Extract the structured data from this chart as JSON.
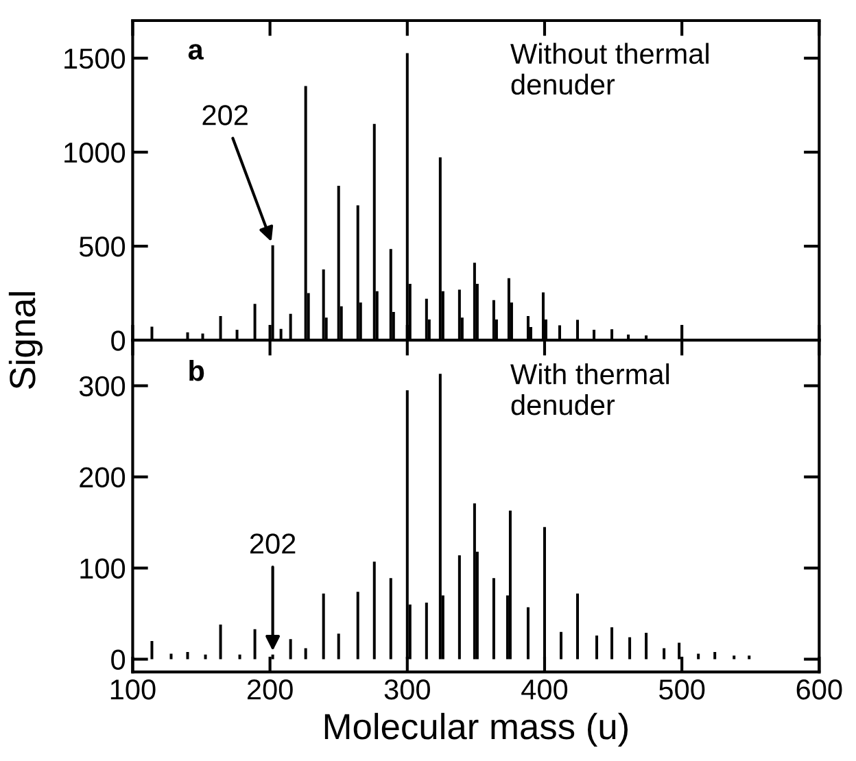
{
  "chart_data": [
    {
      "type": "bar",
      "ylabel": "Signal",
      "x": [
        114,
        127,
        140,
        151,
        164,
        176,
        189,
        202,
        208,
        215,
        226,
        228,
        239,
        241,
        250,
        252,
        264,
        266,
        276,
        278,
        288,
        290,
        300,
        302,
        314,
        316,
        324,
        326,
        338,
        340,
        349,
        351,
        363,
        365,
        374,
        376,
        388,
        390,
        399,
        401,
        411,
        424,
        436,
        449,
        461,
        474,
        488,
        499,
        511
      ],
      "values": [
        72,
        null,
        42,
        35,
        128,
        55,
        193,
        505,
        60,
        140,
        1352,
        250,
        376,
        120,
        821,
        180,
        717,
        200,
        1150,
        260,
        485,
        150,
        1527,
        300,
        220,
        110,
        972,
        260,
        269,
        120,
        412,
        300,
        213,
        110,
        330,
        200,
        128,
        70,
        254,
        110,
        79,
        108,
        55,
        58,
        30,
        25,
        null,
        null,
        8
      ],
      "color": "#000000",
      "xlim": [
        100,
        600
      ],
      "ylim": [
        0,
        1700
      ],
      "yticks": [
        0,
        500,
        1000,
        1500
      ],
      "xticks": [
        {
          "value": 100,
          "label": null
        },
        {
          "value": 200,
          "label": null
        },
        {
          "value": 300,
          "label": null
        },
        {
          "value": 400,
          "label": null
        },
        {
          "value": 500,
          "label": null
        },
        {
          "value": 600,
          "label": null
        }
      ],
      "tick_labels": "y",
      "grid": false,
      "annotations": [
        {
          "text": "a"
        },
        {
          "text": "Without thermal\ndenuder"
        },
        {
          "text": "202",
          "x": 202,
          "y": 505
        }
      ]
    },
    {
      "type": "bar",
      "xlabel": "Molecular mass (u)",
      "x": [
        114,
        128,
        140,
        153,
        164,
        178,
        189,
        202,
        215,
        226,
        239,
        250,
        264,
        276,
        288,
        300,
        302,
        314,
        324,
        326,
        338,
        349,
        351,
        363,
        373,
        375,
        388,
        400,
        412,
        424,
        438,
        449,
        462,
        474,
        487,
        498,
        512,
        524,
        538,
        549
      ],
      "values": [
        20,
        6,
        8,
        5,
        38,
        5,
        33,
        5,
        22,
        12,
        72,
        28,
        74,
        107,
        89,
        295,
        60,
        62,
        313,
        70,
        114,
        171,
        118,
        89,
        70,
        163,
        57,
        145,
        30,
        72,
        26,
        35,
        24,
        29,
        12,
        18,
        6,
        8,
        4,
        4
      ],
      "color": "#000000",
      "xlim": [
        100,
        600
      ],
      "ylim": [
        -14,
        350
      ],
      "yticks": [
        0,
        100,
        200,
        300
      ],
      "xticks": [
        100,
        200,
        300,
        400,
        500,
        600
      ],
      "grid": false,
      "annotations": [
        {
          "text": "b"
        },
        {
          "text": "With thermal\ndenuder"
        },
        {
          "text": "202",
          "x": 202,
          "y": 5
        }
      ]
    }
  ]
}
